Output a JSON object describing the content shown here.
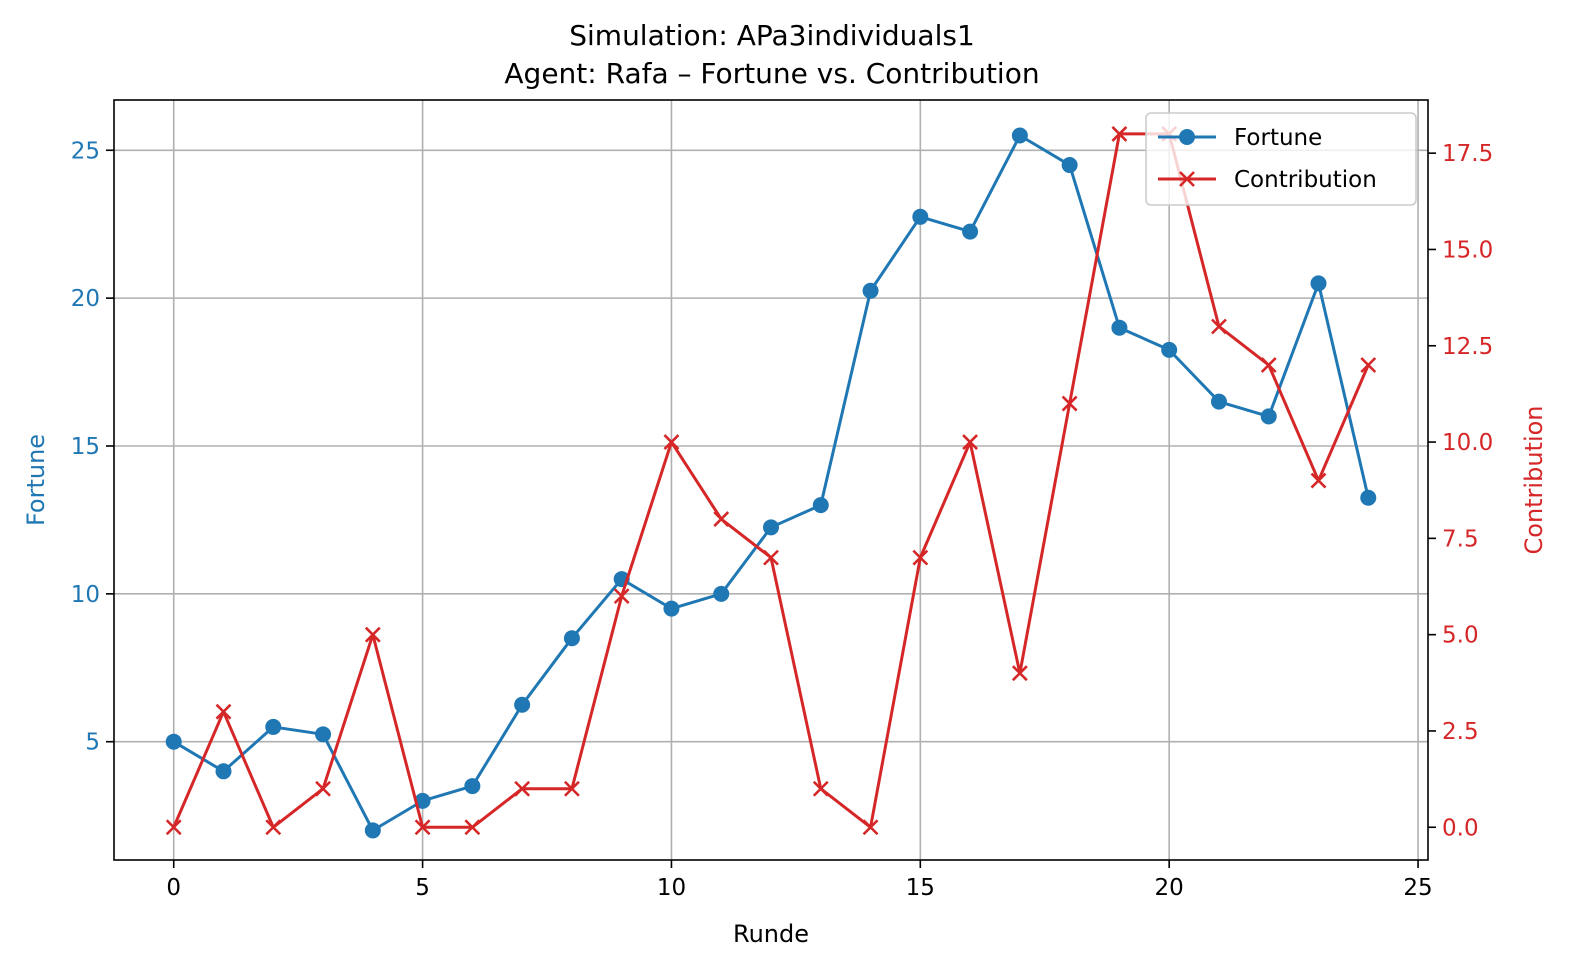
{
  "chart_data": {
    "type": "line",
    "title": "Simulation: APa3individuals1",
    "subtitle": "Agent: Rafa – Fortune vs. Contribution",
    "xlabel": "Runde",
    "ylabel_left": "Fortune",
    "ylabel_right": "Contribution",
    "xlim": [
      -1.2,
      25.2
    ],
    "ylim_left": [
      1.0,
      26.7
    ],
    "ylim_right": [
      -0.85,
      18.88
    ],
    "x_ticks": [
      0,
      5,
      10,
      15,
      20,
      25
    ],
    "y_left_ticks": [
      5,
      10,
      15,
      20,
      25
    ],
    "y_right_ticks": [
      0.0,
      2.5,
      5.0,
      7.5,
      10.0,
      12.5,
      15.0,
      17.5
    ],
    "x_tick_labels": [
      "0",
      "5",
      "10",
      "15",
      "20",
      "25"
    ],
    "y_left_tick_labels": [
      "5",
      "10",
      "15",
      "20",
      "25"
    ],
    "y_right_tick_labels": [
      "0.0",
      "2.5",
      "5.0",
      "7.5",
      "10.0",
      "12.5",
      "15.0",
      "17.5"
    ],
    "grid": true,
    "legend_position": "top-right",
    "x": [
      0,
      1,
      2,
      3,
      4,
      5,
      6,
      7,
      8,
      9,
      10,
      11,
      12,
      13,
      14,
      15,
      16,
      17,
      18,
      19,
      20,
      21,
      22,
      23,
      24
    ],
    "series": [
      {
        "name": "Fortune",
        "axis": "left",
        "color": "#1f77b4",
        "marker": "circle",
        "values": [
          5.0,
          4.0,
          5.5,
          5.25,
          2.0,
          3.0,
          3.5,
          6.25,
          8.5,
          10.5,
          9.5,
          10.0,
          12.25,
          13.0,
          20.25,
          22.75,
          22.25,
          25.5,
          24.5,
          19.0,
          18.25,
          16.5,
          16.0,
          20.5,
          13.25
        ]
      },
      {
        "name": "Contribution",
        "axis": "right",
        "color": "#d62728",
        "marker": "x",
        "values": [
          0,
          3,
          0,
          1,
          5,
          0,
          0,
          1,
          1,
          6,
          10,
          8,
          7,
          1,
          0,
          7,
          10,
          4,
          11,
          18,
          18,
          13,
          12,
          9,
          12
        ]
      }
    ]
  }
}
